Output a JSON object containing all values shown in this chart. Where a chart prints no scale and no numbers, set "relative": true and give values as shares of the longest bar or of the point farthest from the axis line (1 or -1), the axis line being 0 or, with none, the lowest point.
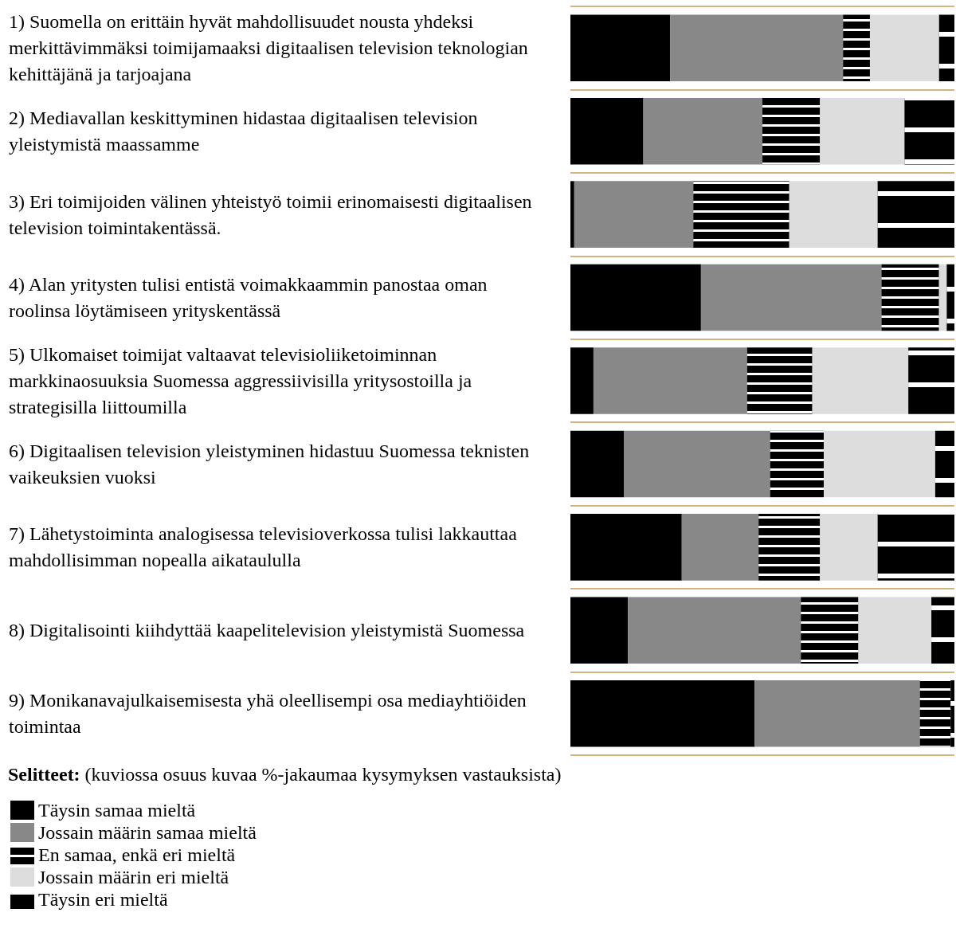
{
  "chart_data": {
    "type": "bar",
    "orientation": "horizontal",
    "stacked": true,
    "relative": true,
    "legend": "bottom left",
    "grid": "y",
    "categories": [
      "1) Suomella on erittäin hyvät mahdollisuudet nousta yhdeksi merkittävimmäksi toimijamaaksi digitaalisen television teknologian kehittäjänä ja tarjoajana",
      "2) Mediavallan keskittyminen hidastaa digitaalisen television yleistymistä maassamme",
      "3) Eri toimijoiden välinen yhteistyö toimii erinomaisesti digitaalisen television toimintakentässä.",
      "4) Alan yritysten tulisi entistä voimakkaammin panostaa oman roolinsa löytämiseen yrityskentässä",
      "5) Ulkomaiset toimijat valtaavat televisioliiketoiminnan markkinaosuuksia Suomessa aggressiivisilla yritysostoilla ja strategisilla liittoumilla",
      "6) Digitaalisen television yleistyminen hidastuu Suomessa teknisten vaikeuksien vuoksi",
      "7) Lähetystoiminta analogisessa televisioverkossa tulisi lakkauttaa mahdollisimman nopealla aikataululla",
      "8) Digitalisointi kiihdyttää kaapelitelevision yleistymistä Suomessa",
      "9) Monikanavajulkaisemisesta yhä oleellisempi osa mediayhtiöiden toimintaa"
    ],
    "series": [
      {
        "name": "Täysin samaa mieltä",
        "color": "#000000",
        "values": [
          0.26,
          0.19,
          0.01,
          0.34,
          0.06,
          0.14,
          0.29,
          0.15,
          0.48
        ]
      },
      {
        "name": "Jossain määrin samaa mieltä",
        "color": "#888888",
        "values": [
          0.45,
          0.31,
          0.31,
          0.47,
          0.4,
          0.38,
          0.2,
          0.45,
          0.43
        ]
      },
      {
        "name": "En samaa, enkä eri mieltä",
        "color": "#000000",
        "values": [
          0.07,
          0.15,
          0.25,
          0.15,
          0.17,
          0.14,
          0.16,
          0.15,
          0.08
        ]
      },
      {
        "name": "Jossain määrin eri mieltä",
        "color": "#dddddd",
        "values": [
          0.18,
          0.22,
          0.23,
          0.02,
          0.25,
          0.29,
          0.15,
          0.19,
          0.0
        ]
      },
      {
        "name": "Täysin eri mieltä",
        "color": "#000000",
        "values": [
          0.04,
          0.13,
          0.2,
          0.02,
          0.12,
          0.05,
          0.2,
          0.06,
          0.01
        ]
      }
    ],
    "annotations": [
      "Selitteet: (kuviossa osuus kuvaa %-jakaumaa kysymyksen vastauksista)"
    ]
  }
}
